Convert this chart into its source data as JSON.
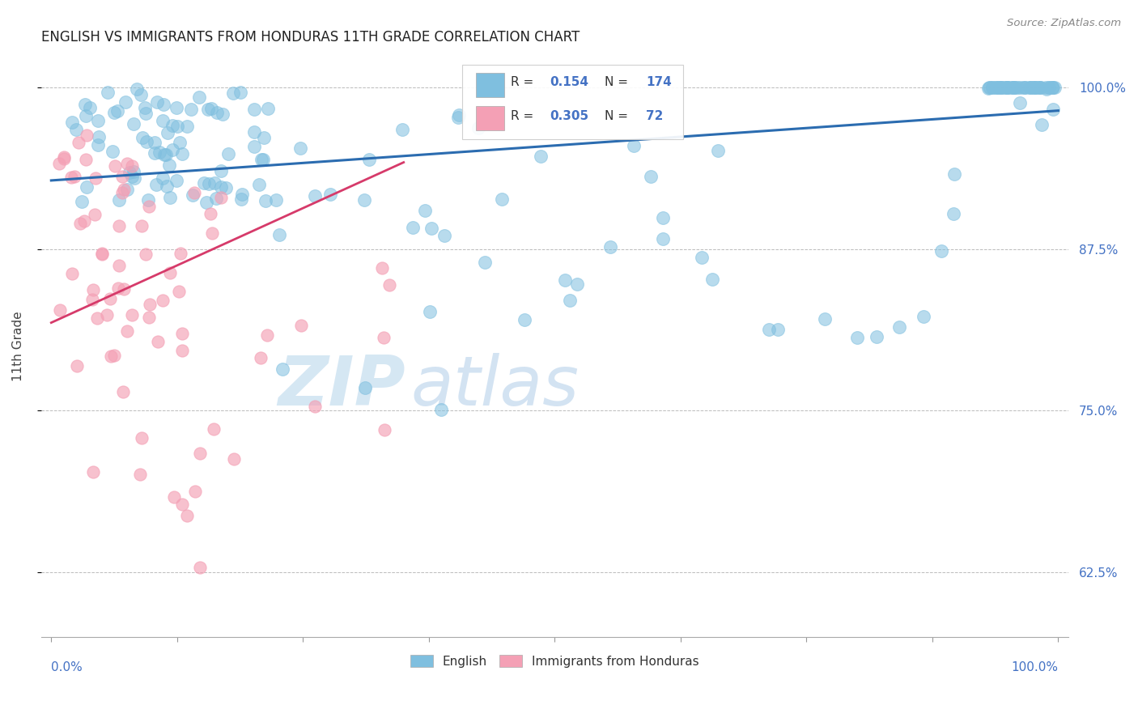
{
  "title": "ENGLISH VS IMMIGRANTS FROM HONDURAS 11TH GRADE CORRELATION CHART",
  "source": "Source: ZipAtlas.com",
  "ylabel": "11th Grade",
  "legend_label_blue": "English",
  "legend_label_pink": "Immigrants from Honduras",
  "blue_color": "#7fbfdf",
  "pink_color": "#f4a0b5",
  "trendline_blue_color": "#2b6cb0",
  "trendline_pink_color": "#d63a6a",
  "watermark_zip": "ZIP",
  "watermark_atlas": "atlas",
  "ytick_labels": [
    "62.5%",
    "75.0%",
    "87.5%",
    "100.0%"
  ],
  "ytick_values": [
    0.625,
    0.75,
    0.875,
    1.0
  ],
  "ymin": 0.575,
  "ymax": 1.025,
  "xmin": -0.01,
  "xmax": 1.01,
  "blue_trend_x0": 0.0,
  "blue_trend_x1": 1.0,
  "blue_trend_y0": 0.928,
  "blue_trend_y1": 0.982,
  "pink_trend_x0": 0.0,
  "pink_trend_x1": 0.35,
  "pink_trend_y0": 0.818,
  "pink_trend_y1": 0.942,
  "grid_color": "#bbbbbb",
  "title_color": "#222222",
  "axis_label_color": "#4472c4",
  "right_tick_color": "#4472c4",
  "legend_r_color": "#333333",
  "legend_val_color": "#4472c4"
}
